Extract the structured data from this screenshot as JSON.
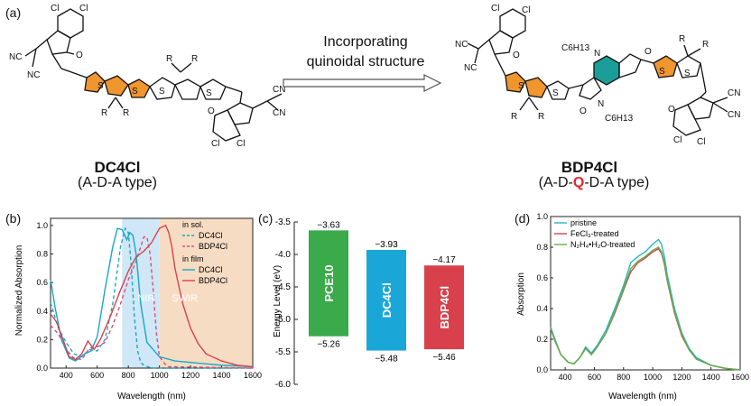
{
  "panel_a": {
    "label": "(a)",
    "left_molecule": {
      "name": "DC4Cl",
      "type": "(A-D-A type)"
    },
    "right_molecule": {
      "name": "BDP4Cl",
      "type_prefix": "(A-D-",
      "type_highlight": "Q",
      "type_suffix": "-D-A type)"
    },
    "arrow_text_line1": "Incorporating",
    "arrow_text_line2": "quinoidal structure",
    "atoms": {
      "cl": "Cl",
      "cn": "CN",
      "nc": "NC",
      "o": "O",
      "s": "S",
      "r": "R",
      "n": "N",
      "c6h13": "C6H13"
    },
    "colors": {
      "donor": "#f0962e",
      "quinoid": "#1b9e9a",
      "accent_red": "#e0262f"
    }
  },
  "chart_data": [
    {
      "panel": "(b)",
      "type": "line",
      "xlabel": "Wavelength (nm)",
      "ylabel": "Normalized Absorption",
      "xlim": [
        300,
        1600
      ],
      "ylim": [
        0,
        1.05
      ],
      "xticks": [
        400,
        600,
        800,
        1000,
        1200,
        1400,
        1600
      ],
      "yticks": [
        "0.0",
        "0.2",
        "0.4",
        "0.6",
        "0.8",
        "1.0"
      ],
      "regions": [
        {
          "label": "NIR",
          "from": 760,
          "to": 1000,
          "color": "#cfe7f7"
        },
        {
          "label": "SWIR",
          "from": 1000,
          "to": 1600,
          "color": "#f7dcc4"
        }
      ],
      "legend": {
        "group1": "in sol.",
        "group2": "in film",
        "position": "top-right"
      },
      "series": [
        {
          "name": "DC4Cl",
          "group": "in sol.",
          "style": "dashed",
          "color": "#1aa7c8",
          "x": [
            300,
            350,
            400,
            450,
            500,
            550,
            600,
            650,
            700,
            750,
            780,
            800,
            820,
            840,
            860,
            880,
            900,
            950,
            1000,
            1600
          ],
          "y": [
            0.46,
            0.28,
            0.18,
            0.1,
            0.08,
            0.13,
            0.12,
            0.2,
            0.45,
            0.85,
            0.98,
            0.95,
            0.7,
            0.35,
            0.12,
            0.04,
            0.02,
            0.0,
            0.0,
            0.0
          ]
        },
        {
          "name": "BDP4Cl",
          "group": "in sol.",
          "style": "dashed",
          "color": "#d9507a",
          "x": [
            300,
            350,
            400,
            450,
            500,
            550,
            600,
            650,
            700,
            750,
            800,
            850,
            880,
            900,
            920,
            940,
            960,
            980,
            1000,
            1050,
            1600
          ],
          "y": [
            0.3,
            0.24,
            0.13,
            0.07,
            0.06,
            0.14,
            0.15,
            0.18,
            0.3,
            0.45,
            0.62,
            0.75,
            0.85,
            0.92,
            0.92,
            0.8,
            0.55,
            0.25,
            0.08,
            0.01,
            0.0
          ]
        },
        {
          "name": "DC4Cl",
          "group": "in film",
          "style": "solid",
          "color": "#1aa7c8",
          "x": [
            300,
            330,
            370,
            420,
            460,
            520,
            560,
            600,
            650,
            700,
            730,
            760,
            790,
            810,
            830,
            850,
            880,
            920,
            1000,
            1100,
            1200,
            1300,
            1400,
            1600
          ],
          "y": [
            0.62,
            0.42,
            0.2,
            0.07,
            0.05,
            0.1,
            0.12,
            0.22,
            0.55,
            0.85,
            0.98,
            0.97,
            0.9,
            0.95,
            0.93,
            0.8,
            0.45,
            0.18,
            0.08,
            0.05,
            0.04,
            0.03,
            0.02,
            0.01
          ]
        },
        {
          "name": "BDP4Cl",
          "group": "in film",
          "style": "solid",
          "color": "#d9424a",
          "x": [
            300,
            340,
            380,
            420,
            460,
            500,
            540,
            580,
            620,
            680,
            740,
            800,
            850,
            900,
            950,
            1000,
            1040,
            1060,
            1080,
            1100,
            1150,
            1200,
            1250,
            1300,
            1400,
            1500,
            1600
          ],
          "y": [
            0.38,
            0.32,
            0.2,
            0.08,
            0.06,
            0.1,
            0.19,
            0.13,
            0.2,
            0.35,
            0.52,
            0.68,
            0.78,
            0.82,
            0.88,
            0.98,
            1.0,
            0.95,
            0.85,
            0.7,
            0.45,
            0.28,
            0.17,
            0.1,
            0.05,
            0.02,
            0.01
          ]
        }
      ]
    },
    {
      "panel": "(c)",
      "type": "bar",
      "ylabel": "Energy Level (eV)",
      "ylim": [
        -6.0,
        -3.5
      ],
      "yticks": [
        "-3.5",
        "-4.0",
        "-4.5",
        "-5.0",
        "-5.5",
        "-6.0"
      ],
      "categories": [
        "PCE10",
        "DC4Cl",
        "BDP4Cl"
      ],
      "lumo": [
        -3.63,
        -3.93,
        -4.17
      ],
      "homo": [
        -5.26,
        -5.48,
        -5.46
      ],
      "lumo_labels": [
        "−3.63",
        "−3.93",
        "−4.17"
      ],
      "homo_labels": [
        "−5.26",
        "−5.48",
        "−5.46"
      ],
      "colors": [
        "#3aaa4a",
        "#1aa7d8",
        "#d8414c"
      ]
    },
    {
      "panel": "(d)",
      "type": "line",
      "xlabel": "Wavelength (nm)",
      "ylabel": "Absorption",
      "xlim": [
        300,
        1600
      ],
      "ylim": [
        0,
        1.0
      ],
      "xticks": [
        400,
        600,
        800,
        1000,
        1200,
        1400,
        1600
      ],
      "yticks": [
        "0.0",
        "0.2",
        "0.4",
        "0.6",
        "0.8",
        "1.0"
      ],
      "legend_position": "top-left",
      "series": [
        {
          "name": "pristine",
          "color": "#2ab3c4",
          "x": [
            300,
            330,
            370,
            420,
            460,
            500,
            540,
            580,
            620,
            680,
            740,
            800,
            850,
            900,
            950,
            1000,
            1040,
            1060,
            1080,
            1100,
            1150,
            1200,
            1250,
            1300,
            1400,
            1500,
            1600
          ],
          "y": [
            0.28,
            0.2,
            0.1,
            0.05,
            0.04,
            0.08,
            0.15,
            0.11,
            0.16,
            0.26,
            0.4,
            0.55,
            0.7,
            0.74,
            0.77,
            0.82,
            0.85,
            0.82,
            0.74,
            0.62,
            0.4,
            0.24,
            0.14,
            0.08,
            0.03,
            0.01,
            0.0
          ]
        },
        {
          "name": "FeCl3-treated",
          "color": "#d9424a",
          "x": [
            300,
            330,
            370,
            420,
            460,
            500,
            540,
            580,
            620,
            680,
            740,
            800,
            850,
            900,
            950,
            1000,
            1040,
            1060,
            1080,
            1100,
            1150,
            1200,
            1250,
            1300,
            1400,
            1500,
            1600
          ],
          "y": [
            0.27,
            0.19,
            0.1,
            0.05,
            0.04,
            0.08,
            0.14,
            0.1,
            0.15,
            0.24,
            0.37,
            0.52,
            0.64,
            0.7,
            0.73,
            0.77,
            0.79,
            0.76,
            0.69,
            0.58,
            0.37,
            0.22,
            0.13,
            0.07,
            0.03,
            0.01,
            0.0
          ]
        },
        {
          "name": "N2H4·H2O-treated",
          "color": "#5fb04a",
          "x": [
            300,
            330,
            370,
            420,
            460,
            500,
            540,
            580,
            620,
            680,
            740,
            800,
            850,
            900,
            950,
            1000,
            1040,
            1060,
            1080,
            1100,
            1150,
            1200,
            1250,
            1300,
            1400,
            1500,
            1600
          ],
          "y": [
            0.27,
            0.19,
            0.1,
            0.05,
            0.04,
            0.08,
            0.14,
            0.1,
            0.15,
            0.24,
            0.38,
            0.53,
            0.66,
            0.71,
            0.74,
            0.78,
            0.8,
            0.77,
            0.7,
            0.59,
            0.38,
            0.23,
            0.13,
            0.07,
            0.03,
            0.01,
            0.0
          ]
        }
      ],
      "legend_labels": {
        "pristine": "pristine",
        "fecl3": "FeCl₃-treated",
        "n2h4": "N₂H₄•H₂O-treated"
      }
    }
  ]
}
